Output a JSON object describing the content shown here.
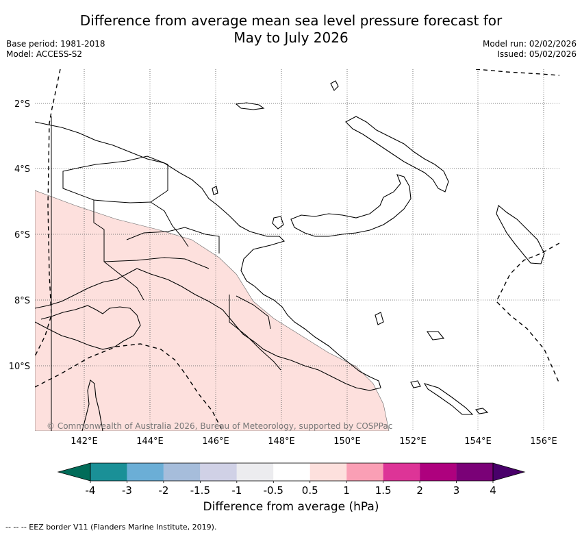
{
  "header": {
    "title_line1": "Difference from average mean sea level pressure forecast for",
    "title_line2": "May to July 2026",
    "base_period": "Base period: 1981-2018",
    "model": "Model: ACCESS-S2",
    "model_run": "Model run: 02/02/2026",
    "issued": "Issued: 05/02/2026"
  },
  "map": {
    "lat_labels": [
      "2°S",
      "4°S",
      "6°S",
      "8°S",
      "10°S"
    ],
    "lon_labels": [
      "142°E",
      "144°E",
      "146°E",
      "148°E",
      "150°E",
      "152°E",
      "154°E",
      "156°E"
    ],
    "copyright": "© Commonwealth of Australia 2026, Bureau of Meteorology, supported by COSPPac",
    "shaded_category": "0.5 to 1 hPa above average (south-west region)"
  },
  "colorbar": {
    "tick_labels": [
      "-4",
      "-3",
      "-2",
      "-1.5",
      "-1",
      "-0.5",
      "0.5",
      "1",
      "1.5",
      "2",
      "3",
      "4"
    ],
    "colors": [
      "#1a9097",
      "#6baed6",
      "#a6bddb",
      "#d0d1e6",
      "#ececef",
      "#ffffff",
      "#fde0dd",
      "#fa9fb5",
      "#dd3497",
      "#ae017e",
      "#7a0177"
    ],
    "low_extend_color": "#016c59",
    "high_extend_color": "#49006a",
    "label": "Difference from average (hPa)"
  },
  "colors": {
    "shade": "#fde0dd",
    "coast": "#000000",
    "grid": "#555555"
  },
  "footer": "--  --  -- EEZ border V11 (Flanders Marine Institute, 2019)."
}
